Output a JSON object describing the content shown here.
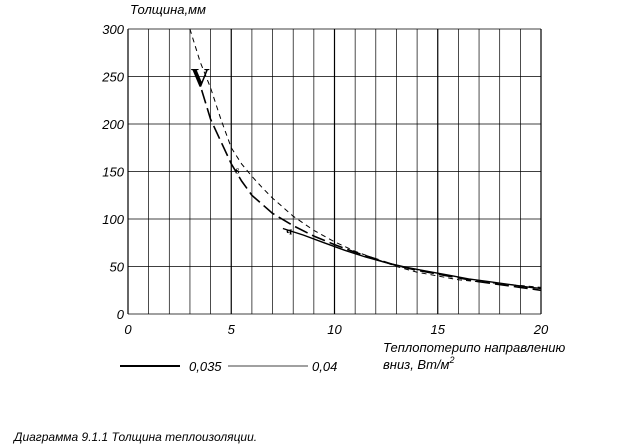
{
  "chart_data": {
    "type": "line",
    "ylabel": "Толщина,мм",
    "xlabel_line1": "Теплопотерипо направлению",
    "xlabel_line2": "вниз, Вт/м",
    "xlabel_sup": "2",
    "xlim": [
      0,
      20
    ],
    "ylim": [
      0,
      300
    ],
    "x_ticks": [
      0,
      5,
      10,
      15,
      20
    ],
    "y_ticks": [
      0,
      50,
      100,
      150,
      200,
      250,
      300
    ],
    "grid": true,
    "legend_placement": "bottom-left",
    "legend": [
      {
        "label": "0,035",
        "style": "solid"
      },
      {
        "label": "0,04",
        "style": "thin-solid"
      }
    ],
    "annotations": [
      {
        "text": "V",
        "x": 3.5,
        "y": 250
      },
      {
        "text": "s",
        "x": 5.3,
        "y": 152
      },
      {
        "text": "ч",
        "x": 7.8,
        "y": 88
      }
    ],
    "series": [
      {
        "style": "long-dash",
        "points": [
          [
            3.3,
            255
          ],
          [
            4.0,
            205
          ],
          [
            5.0,
            158
          ],
          [
            5.5,
            140
          ],
          [
            6.0,
            125
          ],
          [
            7.0,
            106
          ],
          [
            8.0,
            93
          ],
          [
            9.0,
            82
          ],
          [
            10.0,
            73
          ],
          [
            11.0,
            65
          ],
          [
            12.0,
            58
          ],
          [
            13.0,
            51
          ],
          [
            14.0,
            46
          ],
          [
            15.0,
            42
          ],
          [
            16.0,
            38
          ],
          [
            17.0,
            34
          ],
          [
            18.0,
            31
          ],
          [
            19.0,
            28
          ],
          [
            20.0,
            25
          ]
        ]
      },
      {
        "style": "short-dash",
        "points": [
          [
            3.0,
            300
          ],
          [
            3.5,
            265
          ],
          [
            4.0,
            238
          ],
          [
            4.5,
            205
          ],
          [
            5.0,
            175
          ],
          [
            5.5,
            158
          ],
          [
            6.0,
            145
          ],
          [
            6.5,
            133
          ],
          [
            7.0,
            122
          ],
          [
            8.0,
            103
          ],
          [
            9.0,
            88
          ],
          [
            10.0,
            76
          ],
          [
            11.0,
            66
          ],
          [
            12.0,
            58
          ],
          [
            13.0,
            50
          ],
          [
            14.0,
            44
          ],
          [
            15.0,
            40
          ],
          [
            16.0,
            36
          ],
          [
            17.0,
            34
          ],
          [
            18.0,
            32
          ],
          [
            19.0,
            30
          ],
          [
            20.0,
            28
          ]
        ]
      },
      {
        "style": "solid",
        "points": [
          [
            7.5,
            90
          ],
          [
            8.5,
            83
          ],
          [
            9.5,
            75
          ],
          [
            10.5,
            67
          ],
          [
            11.5,
            60
          ],
          [
            12.5,
            54
          ],
          [
            13.5,
            49
          ],
          [
            14.5,
            45
          ],
          [
            15.5,
            41
          ],
          [
            16.5,
            37
          ],
          [
            17.5,
            34
          ],
          [
            18.5,
            31
          ],
          [
            19.5,
            28
          ],
          [
            20.0,
            27
          ]
        ]
      }
    ]
  },
  "caption": "Диаграмма 9.1.1 Толщина теплоизоляции."
}
